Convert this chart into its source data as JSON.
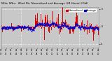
{
  "title": "Milw. Wthr. Wind Dir. Normalized and Average (24 Hours) (Old)",
  "title_fontsize": 2.8,
  "bg_color": "#c8c8c8",
  "plot_bg_color": "#c8c8c8",
  "bar_color": "#dd0000",
  "avg_color": "#0000cc",
  "grid_color": "#ffffff",
  "ylim": [
    -6.0,
    5.5
  ],
  "n_points": 200,
  "seed": 7,
  "legend_bar_label": "Normalized",
  "legend_avg_label": "Average",
  "legend_fontsize": 2.6,
  "tick_fontsize": 2.4,
  "yticks": [
    -5,
    0,
    5
  ],
  "n_vlines": 4
}
